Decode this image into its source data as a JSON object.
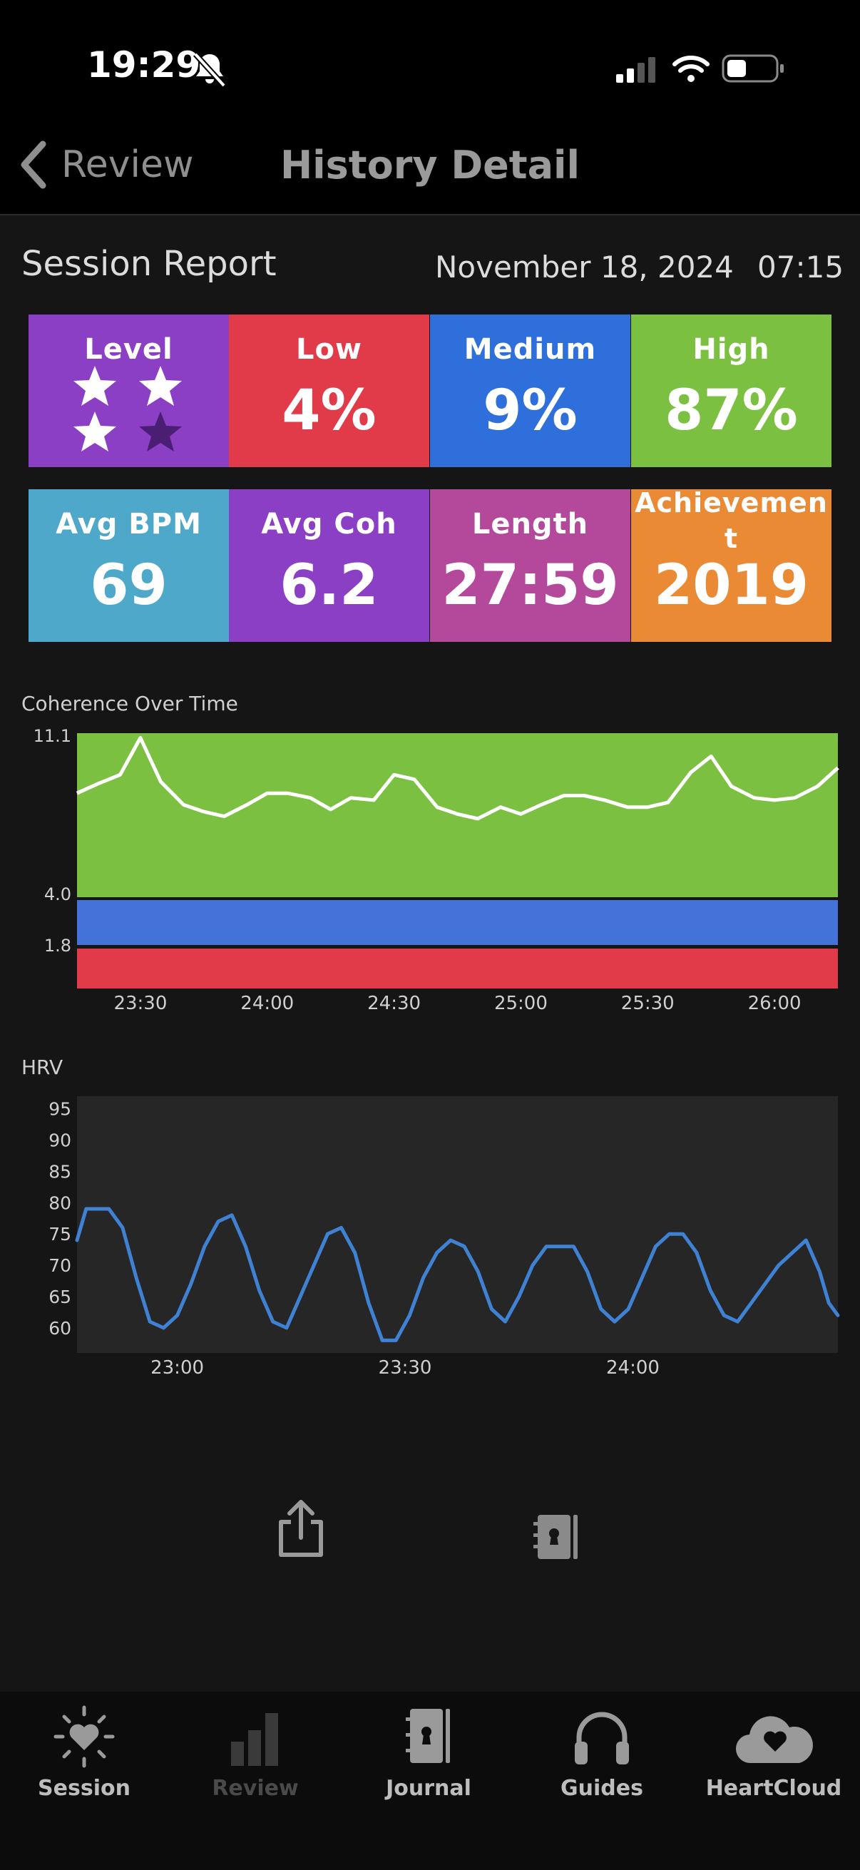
{
  "status_bar": {
    "time": "19:29"
  },
  "nav": {
    "back_label": "Review",
    "title": "History Detail"
  },
  "report": {
    "title": "Session Report",
    "date": "November 18, 2024",
    "time": "07:15"
  },
  "tiles": [
    {
      "label": "Level",
      "stars": 3,
      "of": 4,
      "color": "#8a3fc4"
    },
    {
      "label": "Low",
      "value": "4%",
      "color": "#e13b4a"
    },
    {
      "label": "Medium",
      "value": "9%",
      "color": "#2f6fdb"
    },
    {
      "label": "High",
      "value": "87%",
      "color": "#7cc042"
    },
    {
      "label": "Avg BPM",
      "value": "69",
      "color": "#4ea8c9"
    },
    {
      "label": "Avg Coh",
      "value": "6.2",
      "color": "#8a3fc4"
    },
    {
      "label": "Length",
      "value": "27:59",
      "color": "#b4489b"
    },
    {
      "label": "Achievement",
      "value": "2019",
      "color": "#eb8a35"
    }
  ],
  "chart_data": [
    {
      "type": "line",
      "title": "Coherence Over Time",
      "y_ticks": [
        "11.1",
        "4.0",
        "1.8"
      ],
      "ylim": [
        0,
        11.1
      ],
      "bands": [
        {
          "name": "high",
          "from": 4.0,
          "to": 11.1,
          "color": "#7cc042"
        },
        {
          "name": "medium",
          "from": 1.8,
          "to": 4.0,
          "color": "#4372d8"
        },
        {
          "name": "low",
          "from": 0,
          "to": 1.8,
          "color": "#e13b4a"
        }
      ],
      "x_ticks": [
        "23:30",
        "24:00",
        "24:30",
        "25:00",
        "25:30",
        "26:00"
      ],
      "x_tick_minutes": [
        23.5,
        24.0,
        24.5,
        25.0,
        25.5,
        26.0
      ],
      "xlim": [
        23.25,
        26.25
      ],
      "line_color": "#ffffff",
      "points": [
        [
          23.25,
          8.5
        ],
        [
          23.33,
          8.9
        ],
        [
          23.42,
          9.3
        ],
        [
          23.5,
          10.9
        ],
        [
          23.58,
          9.0
        ],
        [
          23.67,
          8.0
        ],
        [
          23.75,
          7.7
        ],
        [
          23.83,
          7.5
        ],
        [
          23.92,
          8.0
        ],
        [
          24.0,
          8.5
        ],
        [
          24.08,
          8.5
        ],
        [
          24.17,
          8.3
        ],
        [
          24.25,
          7.8
        ],
        [
          24.33,
          8.3
        ],
        [
          24.42,
          8.2
        ],
        [
          24.5,
          9.3
        ],
        [
          24.58,
          9.1
        ],
        [
          24.67,
          7.9
        ],
        [
          24.75,
          7.6
        ],
        [
          24.83,
          7.4
        ],
        [
          24.92,
          7.9
        ],
        [
          25.0,
          7.6
        ],
        [
          25.08,
          8.0
        ],
        [
          25.17,
          8.4
        ],
        [
          25.25,
          8.4
        ],
        [
          25.33,
          8.2
        ],
        [
          25.42,
          7.9
        ],
        [
          25.5,
          7.9
        ],
        [
          25.58,
          8.1
        ],
        [
          25.67,
          9.4
        ],
        [
          25.75,
          10.1
        ],
        [
          25.83,
          8.8
        ],
        [
          25.92,
          8.3
        ],
        [
          26.0,
          8.2
        ],
        [
          26.08,
          8.3
        ],
        [
          26.17,
          8.8
        ],
        [
          26.25,
          9.6
        ]
      ]
    },
    {
      "type": "line",
      "title": "HRV",
      "y_ticks": [
        95,
        90,
        85,
        80,
        75,
        70,
        65,
        60
      ],
      "ylim": [
        56,
        97
      ],
      "x_ticks": [
        "23:00",
        "23:30",
        "24:00"
      ],
      "x_tick_minutes": [
        23.0,
        23.5,
        24.0
      ],
      "xlim": [
        22.78,
        24.45
      ],
      "line_color": "#3f82d4",
      "points": [
        [
          22.78,
          74
        ],
        [
          22.8,
          79
        ],
        [
          22.85,
          79
        ],
        [
          22.88,
          76
        ],
        [
          22.91,
          68
        ],
        [
          22.94,
          61
        ],
        [
          22.97,
          60
        ],
        [
          23.0,
          62
        ],
        [
          23.03,
          67
        ],
        [
          23.06,
          73
        ],
        [
          23.09,
          77
        ],
        [
          23.12,
          78
        ],
        [
          23.15,
          73
        ],
        [
          23.18,
          66
        ],
        [
          23.21,
          61
        ],
        [
          23.24,
          60
        ],
        [
          23.27,
          65
        ],
        [
          23.3,
          70
        ],
        [
          23.33,
          75
        ],
        [
          23.36,
          76
        ],
        [
          23.39,
          72
        ],
        [
          23.42,
          64
        ],
        [
          23.45,
          58
        ],
        [
          23.48,
          58
        ],
        [
          23.51,
          62
        ],
        [
          23.54,
          68
        ],
        [
          23.57,
          72
        ],
        [
          23.6,
          74
        ],
        [
          23.63,
          73
        ],
        [
          23.66,
          69
        ],
        [
          23.69,
          63
        ],
        [
          23.72,
          61
        ],
        [
          23.75,
          65
        ],
        [
          23.78,
          70
        ],
        [
          23.81,
          73
        ],
        [
          23.84,
          73
        ],
        [
          23.87,
          73
        ],
        [
          23.9,
          69
        ],
        [
          23.93,
          63
        ],
        [
          23.96,
          61
        ],
        [
          23.99,
          63
        ],
        [
          24.02,
          68
        ],
        [
          24.05,
          73
        ],
        [
          24.08,
          75
        ],
        [
          24.11,
          75
        ],
        [
          24.14,
          72
        ],
        [
          24.17,
          66
        ],
        [
          24.2,
          62
        ],
        [
          24.23,
          61
        ],
        [
          24.26,
          64
        ],
        [
          24.29,
          67
        ],
        [
          24.32,
          70
        ],
        [
          24.35,
          72
        ],
        [
          24.38,
          74
        ],
        [
          24.41,
          69
        ],
        [
          24.43,
          64
        ],
        [
          24.45,
          62
        ]
      ]
    }
  ],
  "actions": {
    "share_icon": "share-icon",
    "journal_icon": "journal-icon"
  },
  "tabs": [
    {
      "label": "Session",
      "icon": "heart-sun-icon",
      "active": true
    },
    {
      "label": "Review",
      "icon": "bars-icon",
      "active": false
    },
    {
      "label": "Journal",
      "icon": "journal-icon",
      "active": true
    },
    {
      "label": "Guides",
      "icon": "headphones-icon",
      "active": true
    },
    {
      "label": "HeartCloud",
      "icon": "heart-cloud-icon",
      "active": true
    }
  ]
}
